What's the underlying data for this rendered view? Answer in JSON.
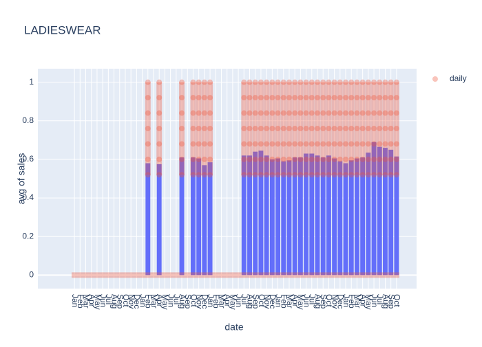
{
  "chart_data": {
    "type": "bar",
    "title": "LADIESWEAR",
    "x_label": "date",
    "y_label": "avg of sales",
    "categories": [
      "Jan",
      "Feb",
      "Mar",
      "Apr",
      "May",
      "Jun",
      "Jul",
      "Aug",
      "Sep",
      "Oct",
      "Nov",
      "Dec",
      "Jan",
      "Feb",
      "Mar",
      "Apr",
      "May",
      "Jun",
      "Jul",
      "Aug",
      "Sep",
      "Oct",
      "Nov",
      "Dec",
      "Jan",
      "Feb",
      "Mar",
      "Apr",
      "May",
      "Jun",
      "Jul",
      "Aug",
      "Sep",
      "Oct",
      "Nov",
      "Dec",
      "Jan",
      "Feb",
      "Mar",
      "Apr",
      "May",
      "Jun",
      "Jul",
      "Aug",
      "Sep",
      "Oct",
      "Nov",
      "Dec",
      "Jan",
      "Feb",
      "Mar",
      "Apr",
      "May",
      "Jun",
      "Jul",
      "Aug",
      "Sep",
      "Oct"
    ],
    "series": [
      {
        "type": "bar",
        "color": "#636efa",
        "values": [
          0,
          0,
          0,
          0,
          0,
          0,
          0,
          0,
          0,
          0,
          0,
          0,
          0,
          0.58,
          0,
          0.575,
          0,
          0,
          0,
          0.61,
          0,
          0.61,
          0.605,
          0.57,
          0.585,
          0,
          0,
          0,
          0,
          0,
          0.62,
          0.62,
          0.64,
          0.645,
          0.62,
          0.6,
          0.605,
          0.59,
          0.595,
          0.61,
          0.61,
          0.63,
          0.63,
          0.62,
          0.61,
          0.62,
          0.605,
          0.59,
          0.58,
          0.595,
          0.605,
          0.61,
          0.635,
          0.69,
          0.665,
          0.66,
          0.65,
          0.615
        ]
      },
      {
        "type": "scatter",
        "name": "daily",
        "color": "#ef553b",
        "values": [
          [
            0
          ],
          [
            0
          ],
          [
            0
          ],
          [
            0
          ],
          [
            0
          ],
          [
            0
          ],
          [
            0
          ],
          [
            0
          ],
          [
            0
          ],
          [
            0
          ],
          [
            0
          ],
          [
            0
          ],
          [
            0
          ],
          [
            0,
            0.52,
            0.6,
            0.68,
            0.76,
            0.84,
            0.92,
            1
          ],
          [
            0
          ],
          [
            0,
            0.52,
            0.6,
            0.68,
            0.76,
            0.84,
            0.92,
            1
          ],
          [
            0
          ],
          [
            0
          ],
          [
            0
          ],
          [
            0,
            0.52,
            0.6,
            0.68,
            0.76,
            0.84,
            0.92,
            1
          ],
          [
            0
          ],
          [
            0,
            0.52,
            0.6,
            0.68,
            0.76,
            0.84,
            0.92,
            1
          ],
          [
            0,
            0.52,
            0.6,
            0.68,
            0.76,
            0.84,
            0.92,
            1
          ],
          [
            0,
            0.52,
            0.6,
            0.68,
            0.76,
            0.84,
            0.92,
            1
          ],
          [
            0,
            0.52,
            0.6,
            0.68,
            0.76,
            0.84,
            0.92,
            1
          ],
          [
            0
          ],
          [
            0
          ],
          [
            0
          ],
          [
            0
          ],
          [
            0
          ],
          [
            0,
            0.52,
            0.6,
            0.68,
            0.76,
            0.84,
            0.92,
            1
          ],
          [
            0,
            0.52,
            0.6,
            0.68,
            0.76,
            0.84,
            0.92,
            1
          ],
          [
            0,
            0.52,
            0.6,
            0.68,
            0.76,
            0.84,
            0.92,
            1
          ],
          [
            0,
            0.52,
            0.6,
            0.68,
            0.76,
            0.84,
            0.92,
            1
          ],
          [
            0,
            0.52,
            0.6,
            0.68,
            0.76,
            0.84,
            0.92,
            1
          ],
          [
            0,
            0.52,
            0.6,
            0.68,
            0.76,
            0.84,
            0.92,
            1
          ],
          [
            0,
            0.52,
            0.6,
            0.68,
            0.76,
            0.84,
            0.92,
            1
          ],
          [
            0,
            0.52,
            0.6,
            0.68,
            0.76,
            0.84,
            0.92,
            1
          ],
          [
            0,
            0.52,
            0.6,
            0.68,
            0.76,
            0.84,
            0.92,
            1
          ],
          [
            0,
            0.52,
            0.6,
            0.68,
            0.76,
            0.84,
            0.92,
            1
          ],
          [
            0,
            0.52,
            0.6,
            0.68,
            0.76,
            0.84,
            0.92,
            1
          ],
          [
            0,
            0.52,
            0.6,
            0.68,
            0.76,
            0.84,
            0.92,
            1
          ],
          [
            0,
            0.52,
            0.6,
            0.68,
            0.76,
            0.84,
            0.92,
            1
          ],
          [
            0,
            0.52,
            0.6,
            0.68,
            0.76,
            0.84,
            0.92,
            1
          ],
          [
            0,
            0.52,
            0.6,
            0.68,
            0.76,
            0.84,
            0.92,
            1
          ],
          [
            0,
            0.52,
            0.6,
            0.68,
            0.76,
            0.84,
            0.92,
            1
          ],
          [
            0,
            0.52,
            0.6,
            0.68,
            0.76,
            0.84,
            0.92,
            1
          ],
          [
            0,
            0.52,
            0.6,
            0.68,
            0.76,
            0.84,
            0.92,
            1
          ],
          [
            0,
            0.52,
            0.6,
            0.68,
            0.76,
            0.84,
            0.92,
            1
          ],
          [
            0,
            0.52,
            0.6,
            0.68,
            0.76,
            0.84,
            0.92,
            1
          ],
          [
            0,
            0.52,
            0.6,
            0.68,
            0.76,
            0.84,
            0.92,
            1
          ],
          [
            0,
            0.52,
            0.6,
            0.68,
            0.76,
            0.84,
            0.92,
            1
          ],
          [
            0,
            0.52,
            0.6,
            0.68,
            0.76,
            0.84,
            0.92,
            1
          ],
          [
            0,
            0.52,
            0.6,
            0.68,
            0.76,
            0.84,
            0.92,
            1
          ],
          [
            0,
            0.52,
            0.6,
            0.68,
            0.76,
            0.84,
            0.92,
            1
          ],
          [
            0,
            0.52,
            0.6,
            0.68,
            0.76,
            0.84,
            0.92,
            1
          ],
          [
            0,
            0.52,
            0.6,
            0.68,
            0.76,
            0.84,
            0.92,
            1
          ],
          [
            0,
            0.52,
            0.6,
            0.68,
            0.76,
            0.84,
            0.92,
            1
          ]
        ]
      }
    ],
    "ylim": [
      -0.07,
      1.07
    ],
    "yticks": [
      0,
      0.2,
      0.4,
      0.6,
      0.8,
      1
    ],
    "grid": true,
    "legend": "top-right"
  }
}
